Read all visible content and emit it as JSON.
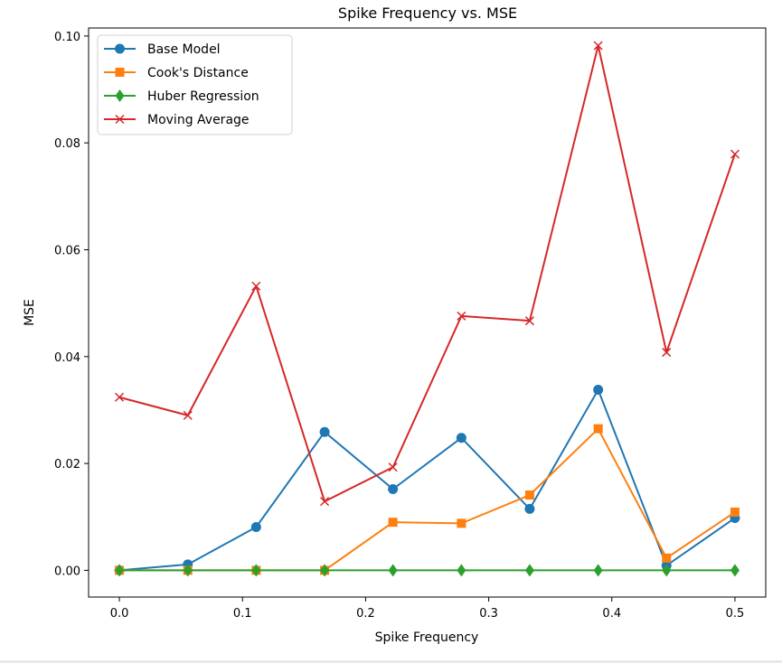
{
  "chart_data": {
    "type": "line",
    "title": "Spike Frequency vs. MSE",
    "xlabel": "Spike Frequency",
    "ylabel": "MSE",
    "xlim": [
      -0.025,
      0.525
    ],
    "ylim": [
      -0.005,
      0.1015
    ],
    "xticks": [
      0.0,
      0.1,
      0.2,
      0.3,
      0.4,
      0.5
    ],
    "xtick_labels": [
      "0.0",
      "0.1",
      "0.2",
      "0.3",
      "0.4",
      "0.5"
    ],
    "yticks": [
      0.0,
      0.02,
      0.04,
      0.06,
      0.08,
      0.1
    ],
    "ytick_labels": [
      "0.00",
      "0.02",
      "0.04",
      "0.06",
      "0.08",
      "0.10"
    ],
    "grid": false,
    "legend_position": "top-left",
    "x": [
      0.0,
      0.0556,
      0.1111,
      0.1667,
      0.2222,
      0.2778,
      0.3333,
      0.3889,
      0.4444,
      0.5
    ],
    "series": [
      {
        "name": "Base Model",
        "color": "#1f77b4",
        "marker": "circle",
        "values": [
          0.0,
          0.0011,
          0.0081,
          0.0259,
          0.0152,
          0.0248,
          0.0115,
          0.0338,
          0.0009,
          0.0098
        ]
      },
      {
        "name": "Cook's Distance",
        "color": "#ff7f0e",
        "marker": "square",
        "values": [
          0.0,
          0.0,
          0.0,
          0.0,
          0.009,
          0.0088,
          0.0141,
          0.0265,
          0.0023,
          0.0109
        ]
      },
      {
        "name": "Huber Regression",
        "color": "#2ca02c",
        "marker": "diamond",
        "values": [
          0.0,
          0.0,
          0.0,
          0.0,
          0.0,
          0.0,
          0.0,
          0.0,
          0.0,
          0.0
        ]
      },
      {
        "name": "Moving Average",
        "color": "#d62728",
        "marker": "x",
        "values": [
          0.0324,
          0.029,
          0.0532,
          0.0129,
          0.0193,
          0.0476,
          0.0467,
          0.0982,
          0.0408,
          0.0779
        ]
      }
    ]
  }
}
